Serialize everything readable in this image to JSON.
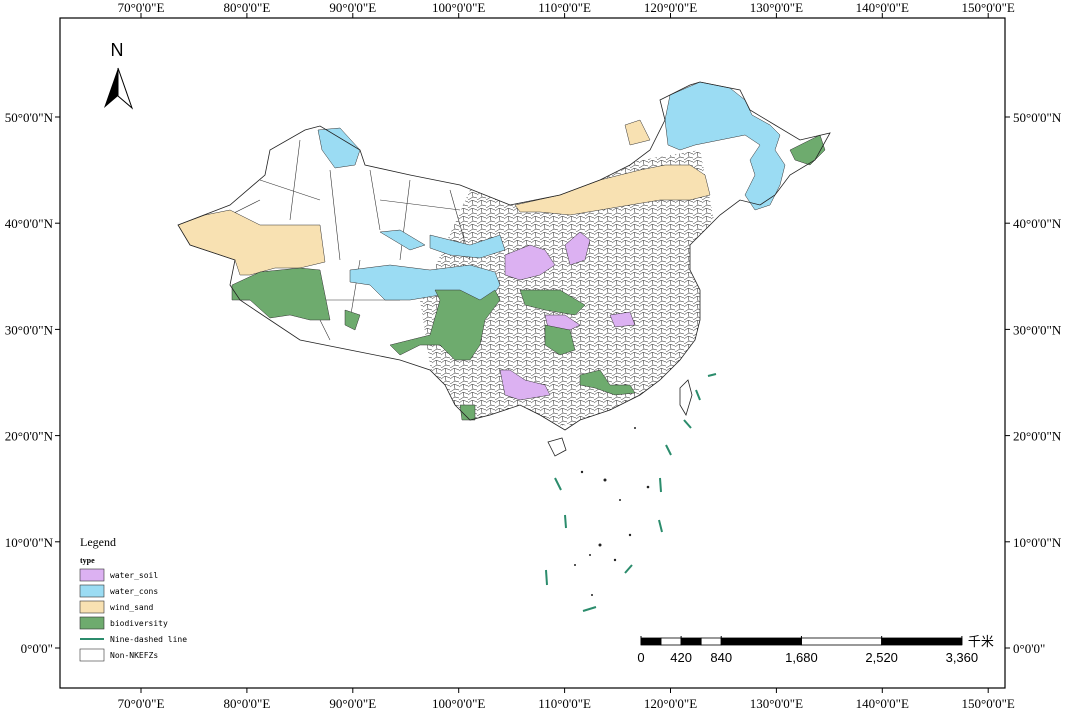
{
  "map": {
    "north_label": "N",
    "longitude_ticks": [
      {
        "value": 70,
        "label": "70°0'0\"E"
      },
      {
        "value": 80,
        "label": "80°0'0\"E"
      },
      {
        "value": 90,
        "label": "90°0'0\"E"
      },
      {
        "value": 100,
        "label": "100°0'0\"E"
      },
      {
        "value": 110,
        "label": "110°0'0\"E"
      },
      {
        "value": 120,
        "label": "120°0'0\"E"
      },
      {
        "value": 130,
        "label": "130°0'0\"E"
      },
      {
        "value": 140,
        "label": "140°0'0\"E"
      },
      {
        "value": 150,
        "label": "150°0'0\"E"
      }
    ],
    "latitude_ticks": [
      {
        "value": 0,
        "label": "0°0'0\""
      },
      {
        "value": 10,
        "label": "10°0'0\"N"
      },
      {
        "value": 20,
        "label": "20°0'0\"N"
      },
      {
        "value": 30,
        "label": "30°0'0\"N"
      },
      {
        "value": 40,
        "label": "40°0'0\"N"
      },
      {
        "value": 50,
        "label": "50°0'0\"N"
      }
    ],
    "legend": {
      "title": "Legend",
      "subtitle": "type",
      "items": [
        {
          "label": "water_soil",
          "color": "#dcb1f2"
        },
        {
          "label": "water_cons",
          "color": "#9bdcf3"
        },
        {
          "label": "wind_sand",
          "color": "#f8e1b2"
        },
        {
          "label": "biodiversity",
          "color": "#6eab6e"
        },
        {
          "label": "Nine-dashed line",
          "color": "#2b8c6c",
          "line": true
        },
        {
          "label": "Non-NKEFZs",
          "color": "#ffffff"
        }
      ]
    },
    "scale_bar": {
      "ticks": [
        0,
        420,
        840,
        {
          "value": 1680,
          "label": "1,680"
        },
        {
          "value": 2520,
          "label": "2,520"
        },
        {
          "value": 3360,
          "label": "3,360"
        }
      ],
      "unit": "千米"
    }
  }
}
